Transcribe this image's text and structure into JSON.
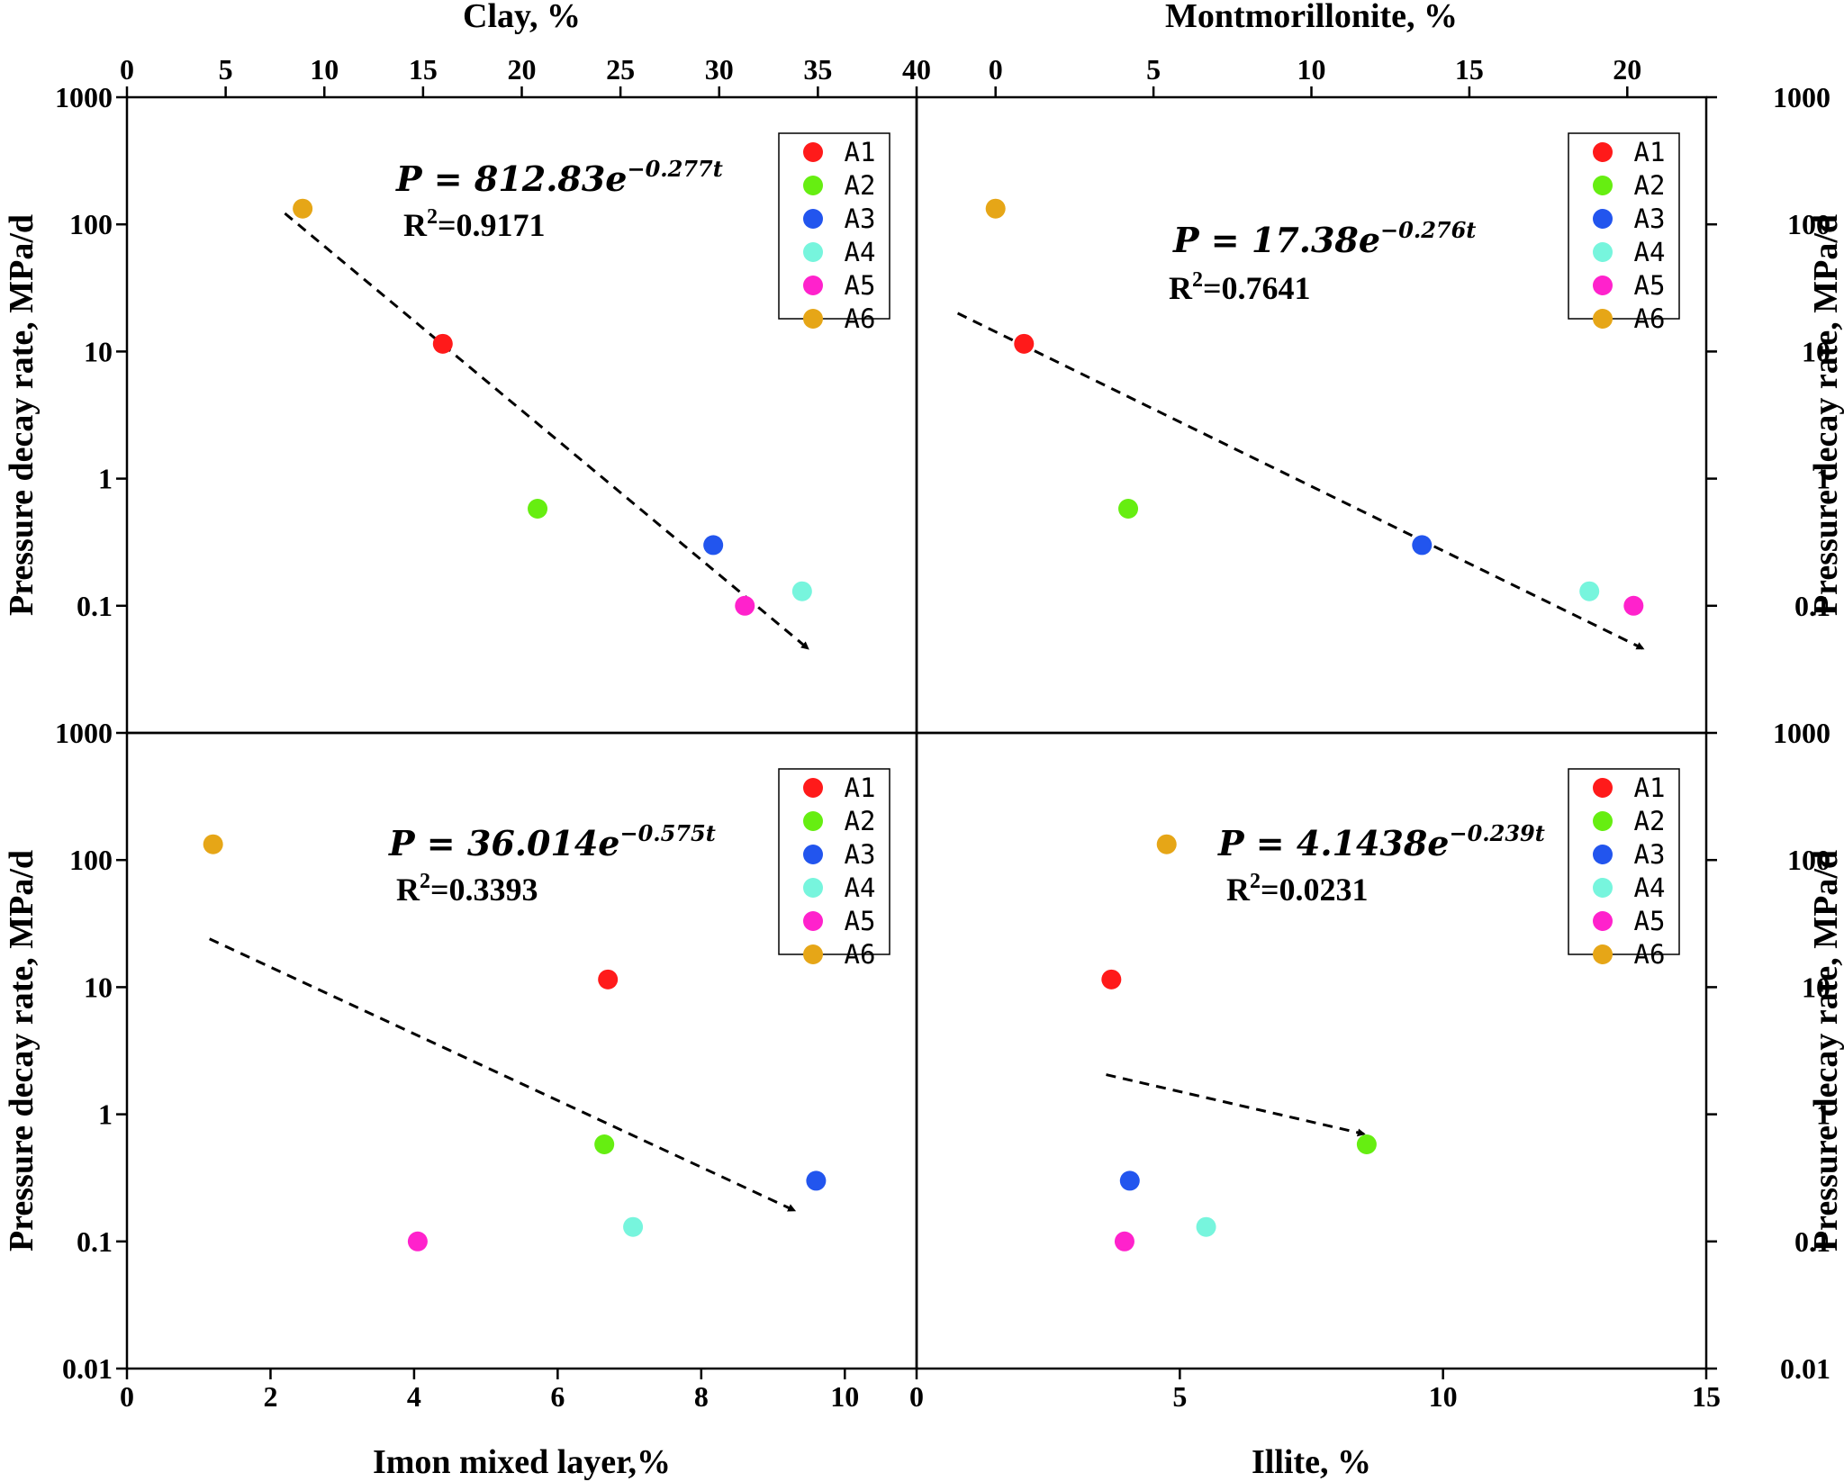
{
  "chart_data": [
    {
      "type": "scatter",
      "panel": "top-left",
      "xlabel": "Clay,  %",
      "x_axis_position": "top",
      "xlim": [
        0,
        40
      ],
      "xticks": [
        "0",
        "5",
        "10",
        "15",
        "20",
        "25",
        "30",
        "35",
        "40"
      ],
      "xtick_values": [
        0,
        5,
        10,
        15,
        20,
        25,
        30,
        35,
        40
      ],
      "ylabel": "Pressure decay rate,  MPa/d",
      "yscale": "log",
      "ylim": [
        0.01,
        1000
      ],
      "yticks": [
        "1000",
        "100",
        "10",
        "1",
        "0.1"
      ],
      "ytick_values": [
        1000,
        100,
        10,
        1,
        0.1
      ],
      "series": [
        {
          "name": "A1",
          "color": "#ff1a1a",
          "x": 16,
          "y": 11.5
        },
        {
          "name": "A2",
          "color": "#66ee11",
          "x": 20.8,
          "y": 0.58
        },
        {
          "name": "A3",
          "color": "#2255ee",
          "x": 29.7,
          "y": 0.3
        },
        {
          "name": "A4",
          "color": "#77f5dd",
          "x": 34.2,
          "y": 0.13
        },
        {
          "name": "A5",
          "color": "#ff22cc",
          "x": 31.3,
          "y": 0.1
        },
        {
          "name": "A6",
          "color": "#e6a617",
          "x": 8.9,
          "y": 133
        }
      ],
      "trend": {
        "x": [
          8,
          34.5
        ],
        "y": [
          122,
          0.046
        ]
      },
      "equation": {
        "lhs": "P = 812.83e",
        "exp": "−0.277t"
      },
      "r2": {
        "label": "R",
        "sup": "2",
        "value": "=0.9171"
      },
      "legend_position": "top-right"
    },
    {
      "type": "scatter",
      "panel": "top-right",
      "xlabel": "Montmorillonite,  %",
      "x_axis_position": "top",
      "xlim": [
        -2.5,
        22.5
      ],
      "xticks": [
        "0",
        "5",
        "10",
        "15",
        "20"
      ],
      "xtick_values": [
        0,
        5,
        10,
        15,
        20
      ],
      "ylabel": "Pressure decay rate,  MPa/d",
      "y_axis_position": "right",
      "yscale": "log",
      "ylim": [
        0.01,
        1000
      ],
      "yticks": [
        "1000",
        "100",
        "10",
        "1",
        "0.1"
      ],
      "ytick_values": [
        1000,
        100,
        10,
        1,
        0.1
      ],
      "series": [
        {
          "name": "A1",
          "color": "#ff1a1a",
          "x": 0.9,
          "y": 11.5
        },
        {
          "name": "A2",
          "color": "#66ee11",
          "x": 4.2,
          "y": 0.58
        },
        {
          "name": "A3",
          "color": "#2255ee",
          "x": 13.5,
          "y": 0.3
        },
        {
          "name": "A4",
          "color": "#77f5dd",
          "x": 18.8,
          "y": 0.13
        },
        {
          "name": "A5",
          "color": "#ff22cc",
          "x": 20.2,
          "y": 0.1
        },
        {
          "name": "A6",
          "color": "#e6a617",
          "x": 0,
          "y": 133
        }
      ],
      "trend": {
        "x": [
          -1.2,
          20.5
        ],
        "y": [
          20,
          0.046
        ]
      },
      "equation": {
        "lhs": "P = 17.38e",
        "exp": "−0.276t"
      },
      "r2": {
        "label": "R",
        "sup": "2",
        "value": "=0.7641"
      },
      "legend_position": "top-right"
    },
    {
      "type": "scatter",
      "panel": "bottom-left",
      "xlabel": "Imon mixed layer,%",
      "xlim": [
        0,
        11
      ],
      "xticks": [
        "0",
        "2",
        "4",
        "6",
        "8",
        "10"
      ],
      "xtick_values": [
        0,
        2,
        4,
        6,
        8,
        10
      ],
      "ylabel": "Pressure decay rate,  MPa/d",
      "yscale": "log",
      "ylim": [
        0.01,
        1000
      ],
      "yticks": [
        "1000",
        "100",
        "10",
        "1",
        "0.1",
        "0.01"
      ],
      "ytick_values": [
        1000,
        100,
        10,
        1,
        0.1,
        0.01
      ],
      "series": [
        {
          "name": "A1",
          "color": "#ff1a1a",
          "x": 6.7,
          "y": 11.5
        },
        {
          "name": "A2",
          "color": "#66ee11",
          "x": 6.65,
          "y": 0.58
        },
        {
          "name": "A3",
          "color": "#2255ee",
          "x": 9.6,
          "y": 0.3
        },
        {
          "name": "A4",
          "color": "#77f5dd",
          "x": 7.05,
          "y": 0.13
        },
        {
          "name": "A5",
          "color": "#ff22cc",
          "x": 4.05,
          "y": 0.1
        },
        {
          "name": "A6",
          "color": "#e6a617",
          "x": 1.2,
          "y": 133
        }
      ],
      "trend": {
        "x": [
          1.15,
          9.3
        ],
        "y": [
          24,
          0.175
        ]
      },
      "equation": {
        "lhs": "P = 36.014e",
        "exp": "−0.575t"
      },
      "r2": {
        "label": "R",
        "sup": "2",
        "value": "=0.3393"
      },
      "legend_position": "top-right"
    },
    {
      "type": "scatter",
      "panel": "bottom-right",
      "xlabel": "Illite,  %",
      "xlim": [
        0,
        15
      ],
      "xticks": [
        "0",
        "5",
        "10",
        "15"
      ],
      "xtick_values": [
        0,
        5,
        10,
        15
      ],
      "ylabel": "Pressure decay rate,  MPa/d",
      "y_axis_position": "right",
      "yscale": "log",
      "ylim": [
        0.01,
        1000
      ],
      "yticks": [
        "1000",
        "100",
        "10",
        "1",
        "0.1",
        "0.01"
      ],
      "ytick_values": [
        1000,
        100,
        10,
        1,
        0.1,
        0.01
      ],
      "series": [
        {
          "name": "A1",
          "color": "#ff1a1a",
          "x": 3.7,
          "y": 11.5
        },
        {
          "name": "A2",
          "color": "#66ee11",
          "x": 8.55,
          "y": 0.58
        },
        {
          "name": "A3",
          "color": "#2255ee",
          "x": 4.05,
          "y": 0.3
        },
        {
          "name": "A4",
          "color": "#77f5dd",
          "x": 5.5,
          "y": 0.13
        },
        {
          "name": "A5",
          "color": "#ff22cc",
          "x": 3.95,
          "y": 0.1
        },
        {
          "name": "A6",
          "color": "#e6a617",
          "x": 4.75,
          "y": 133
        }
      ],
      "trend": {
        "x": [
          3.6,
          8.5
        ],
        "y": [
          2.05,
          0.7
        ]
      },
      "equation": {
        "lhs": "P = 4.1438e",
        "exp": "−0.239t"
      },
      "r2": {
        "label": "R",
        "sup": "2",
        "value": "=0.0231"
      },
      "legend_position": "top-right"
    }
  ]
}
